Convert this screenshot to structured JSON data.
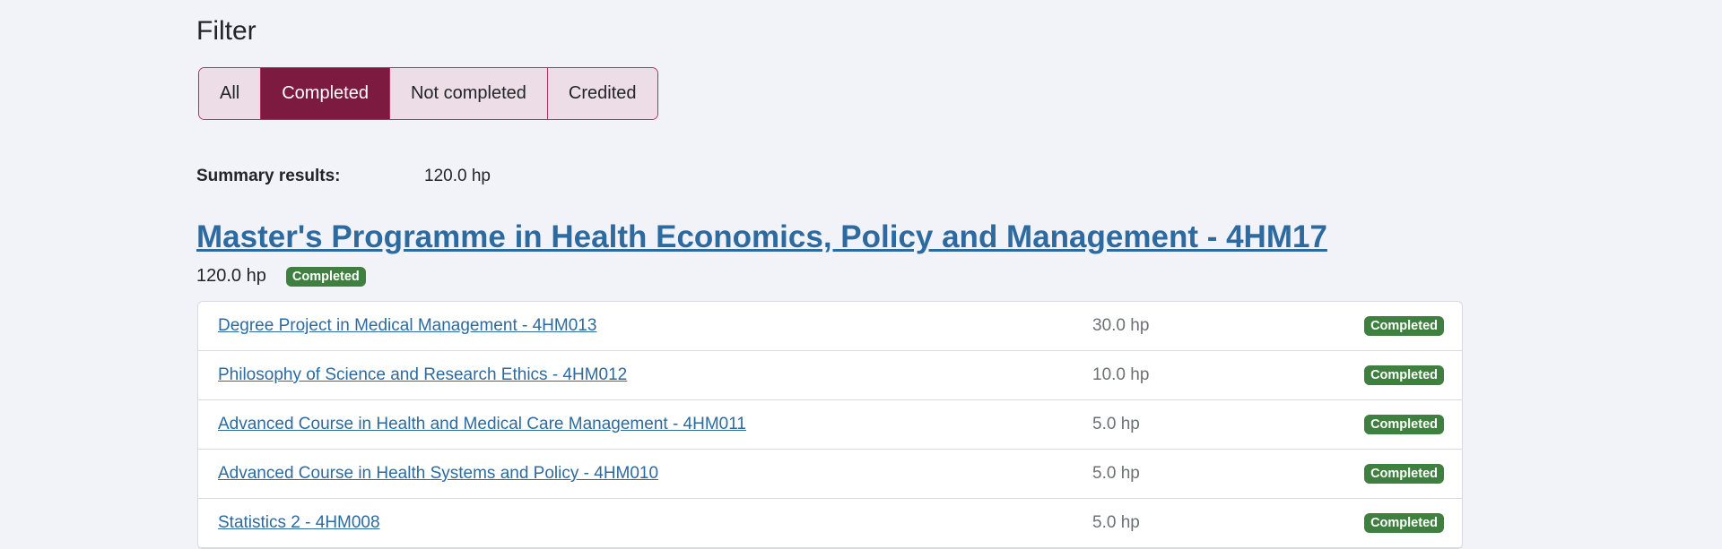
{
  "filter": {
    "title": "Filter",
    "options": [
      "All",
      "Completed",
      "Not completed",
      "Credited"
    ],
    "selected": "Completed"
  },
  "summary": {
    "label": "Summary results:",
    "value": "120.0 hp"
  },
  "programme": {
    "title": "Master's Programme in Health Economics, Policy and Management - 4HM17",
    "credits": "120.0 hp",
    "status": "Completed"
  },
  "courses": [
    {
      "name": "Degree Project in Medical Management - 4HM013",
      "credits": "30.0 hp",
      "status": "Completed"
    },
    {
      "name": "Philosophy of Science and Research Ethics - 4HM012",
      "credits": "10.0 hp",
      "status": "Completed"
    },
    {
      "name": "Advanced Course in Health and Medical Care Management - 4HM011",
      "credits": "5.0 hp",
      "status": "Completed"
    },
    {
      "name": "Advanced Course in Health Systems and Policy - 4HM010",
      "credits": "5.0 hp",
      "status": "Completed"
    },
    {
      "name": "Statistics 2 - 4HM008",
      "credits": "5.0 hp",
      "status": "Completed"
    }
  ],
  "colors": {
    "background": "#f2f3f8",
    "accent": "#7d1a3f",
    "link": "#2c6aa0",
    "success": "#3f7f3f"
  }
}
